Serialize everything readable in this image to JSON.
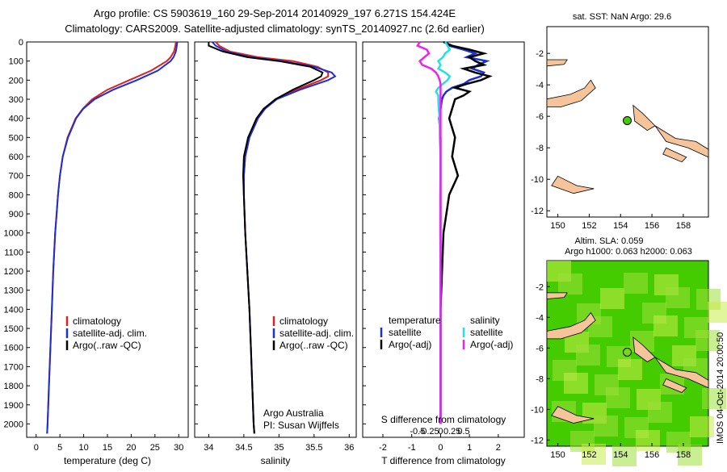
{
  "header": {
    "line1": "Argo profile: CS 5903619_160 29-Sep-2014 20140929_197 6.271S 154.424E",
    "line2": "Climatology: CARS2009. Satellite-adjusted climatology: synTS_20140927.nc (2.6d earlier)"
  },
  "footer": {
    "credit": "IMOS 04-Oct-2014 20:00:50"
  },
  "colors": {
    "climatology": "#e02020",
    "satellite": "#1a2fd8",
    "argo": "#000000",
    "sat_salinity": "#22e0e8",
    "argo_salinity_diff": "#ee22ee",
    "land": "#f5c49a",
    "sla_green": "#44cc00"
  },
  "chart_data": [
    {
      "type": "line",
      "panel": "temperature",
      "xlabel": "temperature (deg C)",
      "xticks": [
        "0",
        "5",
        "10",
        "15",
        "20",
        "25",
        "30"
      ],
      "xlim": [
        -2,
        32
      ],
      "ylim": [
        2070,
        0
      ],
      "yticks": [
        "0",
        "100",
        "200",
        "300",
        "400",
        "500",
        "600",
        "700",
        "800",
        "900",
        "1000",
        "1100",
        "1200",
        "1300",
        "1400",
        "1500",
        "1600",
        "1700",
        "1800",
        "1900",
        "2000"
      ],
      "legend": [
        "climatology",
        "satellite-adj. clim.",
        "Argo(..raw -QC)"
      ],
      "depth": [
        0,
        20,
        50,
        80,
        100,
        150,
        200,
        250,
        300,
        350,
        400,
        500,
        600,
        700,
        800,
        900,
        1000,
        1200,
        1400,
        1600,
        1800,
        2000,
        2050
      ],
      "series": [
        {
          "name": "climatology",
          "values": [
            29.4,
            29.3,
            29.0,
            28.3,
            27.5,
            24.2,
            19.6,
            15.0,
            11.8,
            9.8,
            8.3,
            6.6,
            5.6,
            5.0,
            4.6,
            4.3,
            4.0,
            3.6,
            3.3,
            3.0,
            2.7,
            2.4,
            2.3
          ]
        },
        {
          "name": "satellite-adj. clim.",
          "values": [
            29.7,
            29.6,
            29.4,
            28.9,
            28.3,
            25.6,
            21.2,
            16.2,
            12.3,
            9.9,
            8.4,
            6.7,
            5.6,
            5.0,
            4.6,
            4.3,
            4.0,
            3.6,
            3.3,
            3.0,
            2.7,
            2.4,
            2.3
          ]
        }
      ]
    },
    {
      "type": "line",
      "panel": "salinity",
      "xlabel": "salinity",
      "xticks": [
        "34",
        "34.5",
        "35",
        "35.5",
        "36"
      ],
      "xlim": [
        33.8,
        36.1
      ],
      "ylim": [
        2070,
        0
      ],
      "legend": [
        "climatology",
        "satellite-adj. clim.",
        "Argo(..raw -QC)"
      ],
      "annotation": [
        "Argo Australia",
        "PI: Susan Wijffels"
      ],
      "depth": [
        0,
        20,
        50,
        80,
        100,
        130,
        160,
        180,
        200,
        250,
        300,
        350,
        400,
        500,
        600,
        700,
        800,
        1000,
        1200,
        1400,
        1600,
        1800,
        2000,
        2050
      ],
      "series": [
        {
          "name": "climatology",
          "values": [
            34.1,
            34.15,
            34.3,
            34.7,
            35.2,
            35.55,
            35.7,
            35.7,
            35.6,
            35.25,
            34.95,
            34.8,
            34.7,
            34.58,
            34.52,
            34.5,
            34.5,
            34.52,
            34.55,
            34.58,
            34.6,
            34.62,
            34.64,
            34.65
          ]
        },
        {
          "name": "satellite-adj. clim.",
          "values": [
            34.05,
            34.1,
            34.25,
            34.6,
            35.05,
            35.5,
            35.75,
            35.8,
            35.7,
            35.3,
            34.97,
            34.8,
            34.7,
            34.58,
            34.52,
            34.5,
            34.5,
            34.52,
            34.55,
            34.58,
            34.6,
            34.62,
            34.64,
            34.65
          ]
        },
        {
          "name": "Argo(..raw -QC)",
          "values": [
            34.0,
            34.0,
            34.2,
            34.55,
            35.0,
            35.45,
            35.62,
            35.6,
            35.5,
            35.2,
            34.95,
            34.78,
            34.68,
            34.56,
            34.5,
            34.49,
            34.5,
            34.52,
            34.55,
            34.58,
            34.6,
            34.62,
            34.64,
            34.65
          ]
        }
      ]
    },
    {
      "type": "line",
      "panel": "difference",
      "xlabel_bottom": "T difference from climatology",
      "xlabel_top": "S difference from climatology",
      "xticks_bottom": [
        "-2",
        "-1",
        "0",
        "1",
        "2"
      ],
      "xticks_top": [
        "-0.5",
        "-0.25",
        "0",
        "0.25",
        "0.5"
      ],
      "xlim": [
        -2.7,
        2.9
      ],
      "ylim": [
        2070,
        0
      ],
      "legend": {
        "temperature": [
          "satellite",
          "Argo(-adj)"
        ],
        "salinity": [
          "satellite",
          "Argo(-adj)"
        ],
        "headers": [
          "temperature",
          "salinity"
        ]
      },
      "depth": [
        0,
        20,
        40,
        60,
        80,
        100,
        120,
        140,
        160,
        180,
        200,
        220,
        240,
        260,
        280,
        300,
        350,
        400,
        500,
        600,
        700,
        800,
        900,
        1000,
        1200,
        1400,
        1600,
        1800,
        2000
      ],
      "series": [
        {
          "name": "T satellite",
          "values": [
            0.2,
            0.3,
            0.8,
            1.2,
            0.9,
            1.6,
            1.3,
            1.1,
            1.5,
            1.4,
            1.0,
            0.8,
            0.4,
            0.2,
            0.1,
            0.05,
            0.0,
            -0.05,
            0.0,
            0.0,
            0.0,
            0.0,
            0.0,
            0.0,
            0.0,
            0.0,
            0.0,
            0.0,
            0.0
          ]
        },
        {
          "name": "T Argo(-adj)",
          "values": [
            0.1,
            0.4,
            1.0,
            1.5,
            1.0,
            1.2,
            1.5,
            0.8,
            1.2,
            1.7,
            1.4,
            0.9,
            0.5,
            1.0,
            0.8,
            0.5,
            0.4,
            0.3,
            0.5,
            0.4,
            0.6,
            0.3,
            0.2,
            0.1,
            0.05,
            0.0,
            0.0,
            0.0,
            0.0
          ]
        },
        {
          "name": "S satellite",
          "values": [
            0.1,
            0.15,
            0.2,
            0.1,
            0.05,
            -0.05,
            0.0,
            -0.05,
            0.1,
            0.2,
            0.15,
            0.05,
            -0.05,
            -0.1,
            -0.05,
            -0.05,
            -0.04,
            -0.02,
            -0.02,
            0.0,
            0.0,
            -0.01,
            -0.01,
            -0.01,
            0.0,
            0.0,
            0.0,
            0.0,
            0.0
          ]
        },
        {
          "name": "S Argo(-adj)",
          "values": [
            -0.45,
            -0.5,
            -0.3,
            -0.25,
            -0.35,
            -0.45,
            -0.4,
            -0.2,
            -0.1,
            -0.05,
            -0.02,
            0.0,
            0.0,
            0.0,
            0.0,
            0.0,
            0.0,
            0.0,
            0.0,
            0.0,
            0.0,
            0.0,
            0.0,
            0.0,
            0.0,
            0.0,
            0.0,
            0.0,
            0.0
          ]
        }
      ]
    },
    {
      "type": "map",
      "panel": "sst-map",
      "title": "sat. SST: NaN  Argo: 29.6",
      "xticks": [
        "150",
        "152",
        "154",
        "156",
        "158"
      ],
      "yticks": [
        "-2",
        "-4",
        "-6",
        "-8",
        "-10",
        "-12"
      ],
      "xlim": [
        149.3,
        159.6
      ],
      "ylim": [
        -12.4,
        -0.3
      ],
      "float_position": {
        "lon": 154.424,
        "lat": -6.271
      }
    },
    {
      "type": "map",
      "panel": "sla-map",
      "title": [
        "Altim. SLA: 0.059",
        "Argo h1000: 0.063 h2000: 0.063"
      ],
      "xticks": [
        "150",
        "152",
        "154",
        "156",
        "158"
      ],
      "yticks": [
        "-2",
        "-4",
        "-6",
        "-8",
        "-10",
        "-12"
      ],
      "xlim": [
        149.3,
        159.6
      ],
      "ylim": [
        -12.4,
        -0.3
      ],
      "float_position": {
        "lon": 154.424,
        "lat": -6.271
      }
    }
  ]
}
